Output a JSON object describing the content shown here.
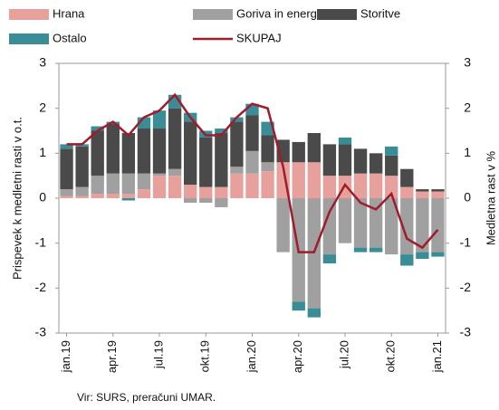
{
  "chart_data": {
    "type": "bar",
    "ylabel": "Prispevek k medletni rasti v o.t.",
    "y2label": "Medletna rast v %",
    "source": "Vir: SURS, preračuni UMAR.",
    "categories": [
      "jan.19",
      null,
      null,
      "apr.19",
      null,
      null,
      "jul.19",
      null,
      null,
      "okt.19",
      null,
      null,
      "jan.20",
      null,
      null,
      "apr.20",
      null,
      null,
      "jul.20",
      null,
      null,
      "okt.20",
      null,
      null,
      "jan.21"
    ],
    "series": [
      {
        "name": "Hrana",
        "color": "#e8a09c",
        "values": [
          0.05,
          0.05,
          0.1,
          0.1,
          0.1,
          0.2,
          0.5,
          0.5,
          0.3,
          0.25,
          0.25,
          0.55,
          0.55,
          0.6,
          0.8,
          0.8,
          0.8,
          0.5,
          0.5,
          0.55,
          0.55,
          0.5,
          0.25,
          0.15,
          0.15
        ]
      },
      {
        "name": "Goriva in energija",
        "color": "#a0a0a0",
        "values": [
          0.15,
          0.2,
          0.4,
          0.45,
          0.45,
          0.35,
          0.05,
          0.15,
          -0.1,
          -0.1,
          -0.2,
          0.15,
          0.5,
          0.2,
          -1.2,
          -2.3,
          -2.45,
          -1.25,
          -1.0,
          -1.1,
          -1.1,
          -1.25,
          -1.25,
          -1.2,
          -1.2
        ]
      },
      {
        "name": "Storitve",
        "color": "#4a4a4a",
        "values": [
          0.9,
          0.9,
          1.0,
          1.1,
          0.9,
          1.0,
          1.0,
          1.35,
          1.4,
          1.1,
          1.2,
          1.0,
          0.8,
          0.6,
          0.5,
          0.45,
          0.65,
          0.7,
          0.7,
          0.55,
          0.45,
          0.45,
          0.4,
          0.05,
          0.05
        ]
      },
      {
        "name": "Ostalo",
        "color": "#3a8d96",
        "values": [
          0.1,
          0.05,
          0.1,
          0.05,
          -0.05,
          0.25,
          0.4,
          0.3,
          0.2,
          0.15,
          0.1,
          0.1,
          0.25,
          0.3,
          0.0,
          -0.2,
          -0.2,
          -0.2,
          0.15,
          -0.1,
          -0.1,
          0.2,
          -0.25,
          -0.15,
          -0.1
        ]
      },
      {
        "name": "SKUPAJ",
        "color": "#a01c2c",
        "type": "line",
        "axis": "y2",
        "values": [
          1.2,
          1.2,
          1.5,
          1.7,
          1.4,
          1.8,
          1.95,
          2.3,
          1.8,
          1.4,
          1.4,
          1.8,
          2.1,
          2.0,
          0.7,
          -1.2,
          -1.2,
          -0.3,
          0.3,
          -0.1,
          -0.25,
          0.1,
          -0.9,
          -1.1,
          -0.7
        ]
      }
    ],
    "stacked": true,
    "ylim": [
      -3,
      3
    ],
    "yticks": [
      -3,
      -2,
      -1,
      0,
      1,
      2,
      3
    ],
    "y2lim": [
      -3,
      3
    ],
    "y2ticks": [
      -3,
      -2,
      -1,
      0,
      1,
      2,
      3
    ],
    "grid": false
  }
}
